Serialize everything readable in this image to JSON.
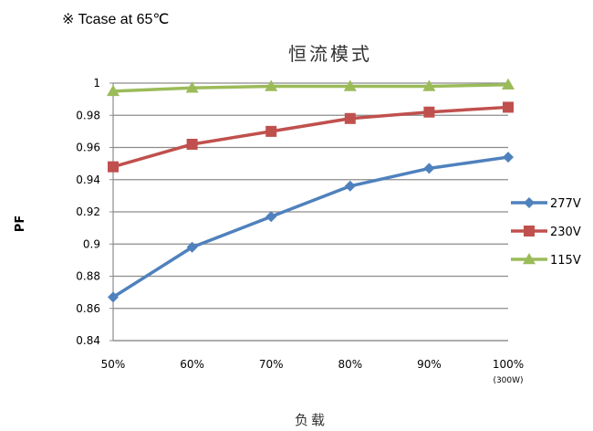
{
  "note": "※ Tcase at 65℃",
  "chart_data": {
    "type": "line",
    "title": "恒流模式",
    "xlabel": "负载",
    "ylabel": "PF",
    "categories": [
      "50%",
      "60%",
      "70%",
      "80%",
      "90%",
      "100%"
    ],
    "category_sublabels": [
      "",
      "",
      "",
      "",
      "",
      "(300W)"
    ],
    "ylim": [
      0.84,
      1.0
    ],
    "yticks": [
      "0.84",
      "0.86",
      "0.88",
      "0.9",
      "0.92",
      "0.94",
      "0.96",
      "0.98",
      "1"
    ],
    "grid": "horizontal",
    "legend": "right",
    "series": [
      {
        "name": "277V",
        "color": "#4F81BD",
        "marker": "diamond",
        "values": [
          0.867,
          0.898,
          0.917,
          0.936,
          0.947,
          0.954
        ]
      },
      {
        "name": "230V",
        "color": "#C0504D",
        "marker": "square",
        "values": [
          0.948,
          0.962,
          0.97,
          0.978,
          0.982,
          0.985
        ]
      },
      {
        "name": "115V",
        "color": "#9BBB59",
        "marker": "triangle",
        "values": [
          0.995,
          0.997,
          0.998,
          0.998,
          0.998,
          0.999
        ]
      }
    ]
  }
}
